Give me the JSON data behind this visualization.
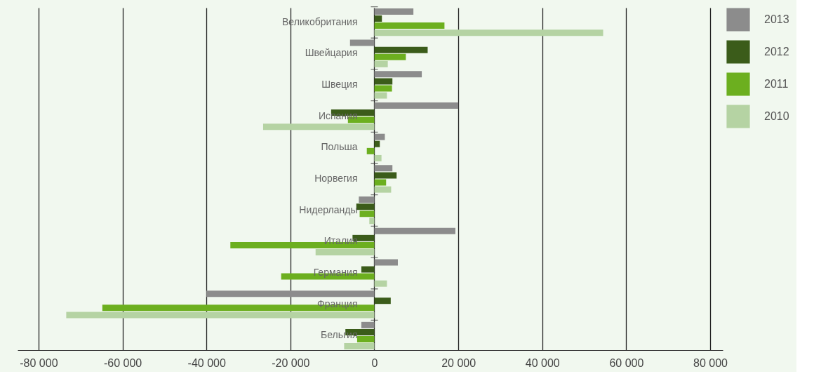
{
  "chart_data": {
    "type": "bar",
    "orientation": "horizontal",
    "categories": [
      "Великобритания",
      "Швейцария",
      "Швеция",
      "Испания",
      "Польша",
      "Норвегия",
      "Нидерланды",
      "Италия",
      "Германия",
      "Франция",
      "Бельгия"
    ],
    "series": [
      {
        "name": "2013",
        "color": "#8c8c8c",
        "values": [
          9300,
          -5800,
          11300,
          20000,
          2500,
          4300,
          -3700,
          19300,
          5600,
          -40000,
          -3100
        ]
      },
      {
        "name": "2012",
        "color": "#3b5c1a",
        "values": [
          1800,
          12700,
          4300,
          -10300,
          1300,
          5300,
          -4300,
          -5200,
          -3100,
          3900,
          -6900
        ]
      },
      {
        "name": "2011",
        "color": "#6caf1f",
        "values": [
          16700,
          7500,
          4200,
          -6300,
          -1800,
          2800,
          -3500,
          -34300,
          -22200,
          -64800,
          -4100
        ]
      },
      {
        "name": "2010",
        "color": "#b5d3a3",
        "values": [
          54500,
          3200,
          3000,
          -26500,
          1700,
          4000,
          -1200,
          -14000,
          3000,
          -73400,
          -7200
        ]
      }
    ],
    "xlim": [
      -85000,
      83000
    ],
    "xticks": [
      {
        "value": -80000,
        "label": "-80 000"
      },
      {
        "value": -60000,
        "label": "-60 000"
      },
      {
        "value": -40000,
        "label": "-40 000"
      },
      {
        "value": -20000,
        "label": "-20 000"
      },
      0,
      {
        "value": 20000,
        "label": "20 000"
      },
      {
        "value": 40000,
        "label": "40 000"
      },
      {
        "value": 60000,
        "label": "60 000"
      },
      {
        "value": 80000,
        "label": "80 000"
      }
    ],
    "grid": "x",
    "legend": "top right"
  }
}
